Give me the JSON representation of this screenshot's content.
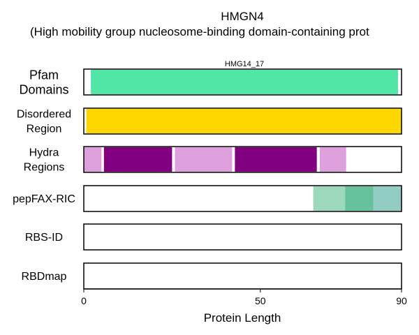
{
  "chart_data": {
    "type": "bar",
    "title": "HMGN4",
    "subtitle": "(High mobility group nucleosome-binding domain-containing prot",
    "xlabel": "Protein Length",
    "xlim": [
      0,
      90
    ],
    "xticks": [
      0,
      50,
      90
    ],
    "xtick_labels": [
      "0",
      "50",
      "90"
    ],
    "tracks": [
      {
        "label": [
          "Pfam",
          "Domains"
        ],
        "segments": [
          {
            "start": 2,
            "end": 89,
            "color": "#52e6a6",
            "label": "HMG14_17"
          }
        ]
      },
      {
        "label": [
          "Disordered",
          "Region"
        ],
        "segments": [
          {
            "start": 0.7,
            "end": 90,
            "color": "#ffd700"
          }
        ]
      },
      {
        "label": [
          "Hydra",
          "Regions"
        ],
        "segments": [
          {
            "start": 0,
            "end": 5,
            "color": "#dda0dd"
          },
          {
            "start": 5.7,
            "end": 25,
            "color": "#800080"
          },
          {
            "start": 25.8,
            "end": 42,
            "color": "#dda0dd"
          },
          {
            "start": 42.8,
            "end": 66,
            "color": "#800080"
          },
          {
            "start": 66.8,
            "end": 74.3,
            "color": "#dda0dd"
          }
        ]
      },
      {
        "label": [
          "pepFAX-RIC"
        ],
        "segments": [
          {
            "start": 65,
            "end": 74,
            "color": "#9cd9bb"
          },
          {
            "start": 74,
            "end": 82,
            "color": "#66c19c"
          },
          {
            "start": 82,
            "end": 90,
            "color": "#91cdc2"
          }
        ]
      },
      {
        "label": [
          "RBS-ID"
        ],
        "segments": []
      },
      {
        "label": [
          "RBDmap"
        ],
        "segments": []
      }
    ]
  }
}
